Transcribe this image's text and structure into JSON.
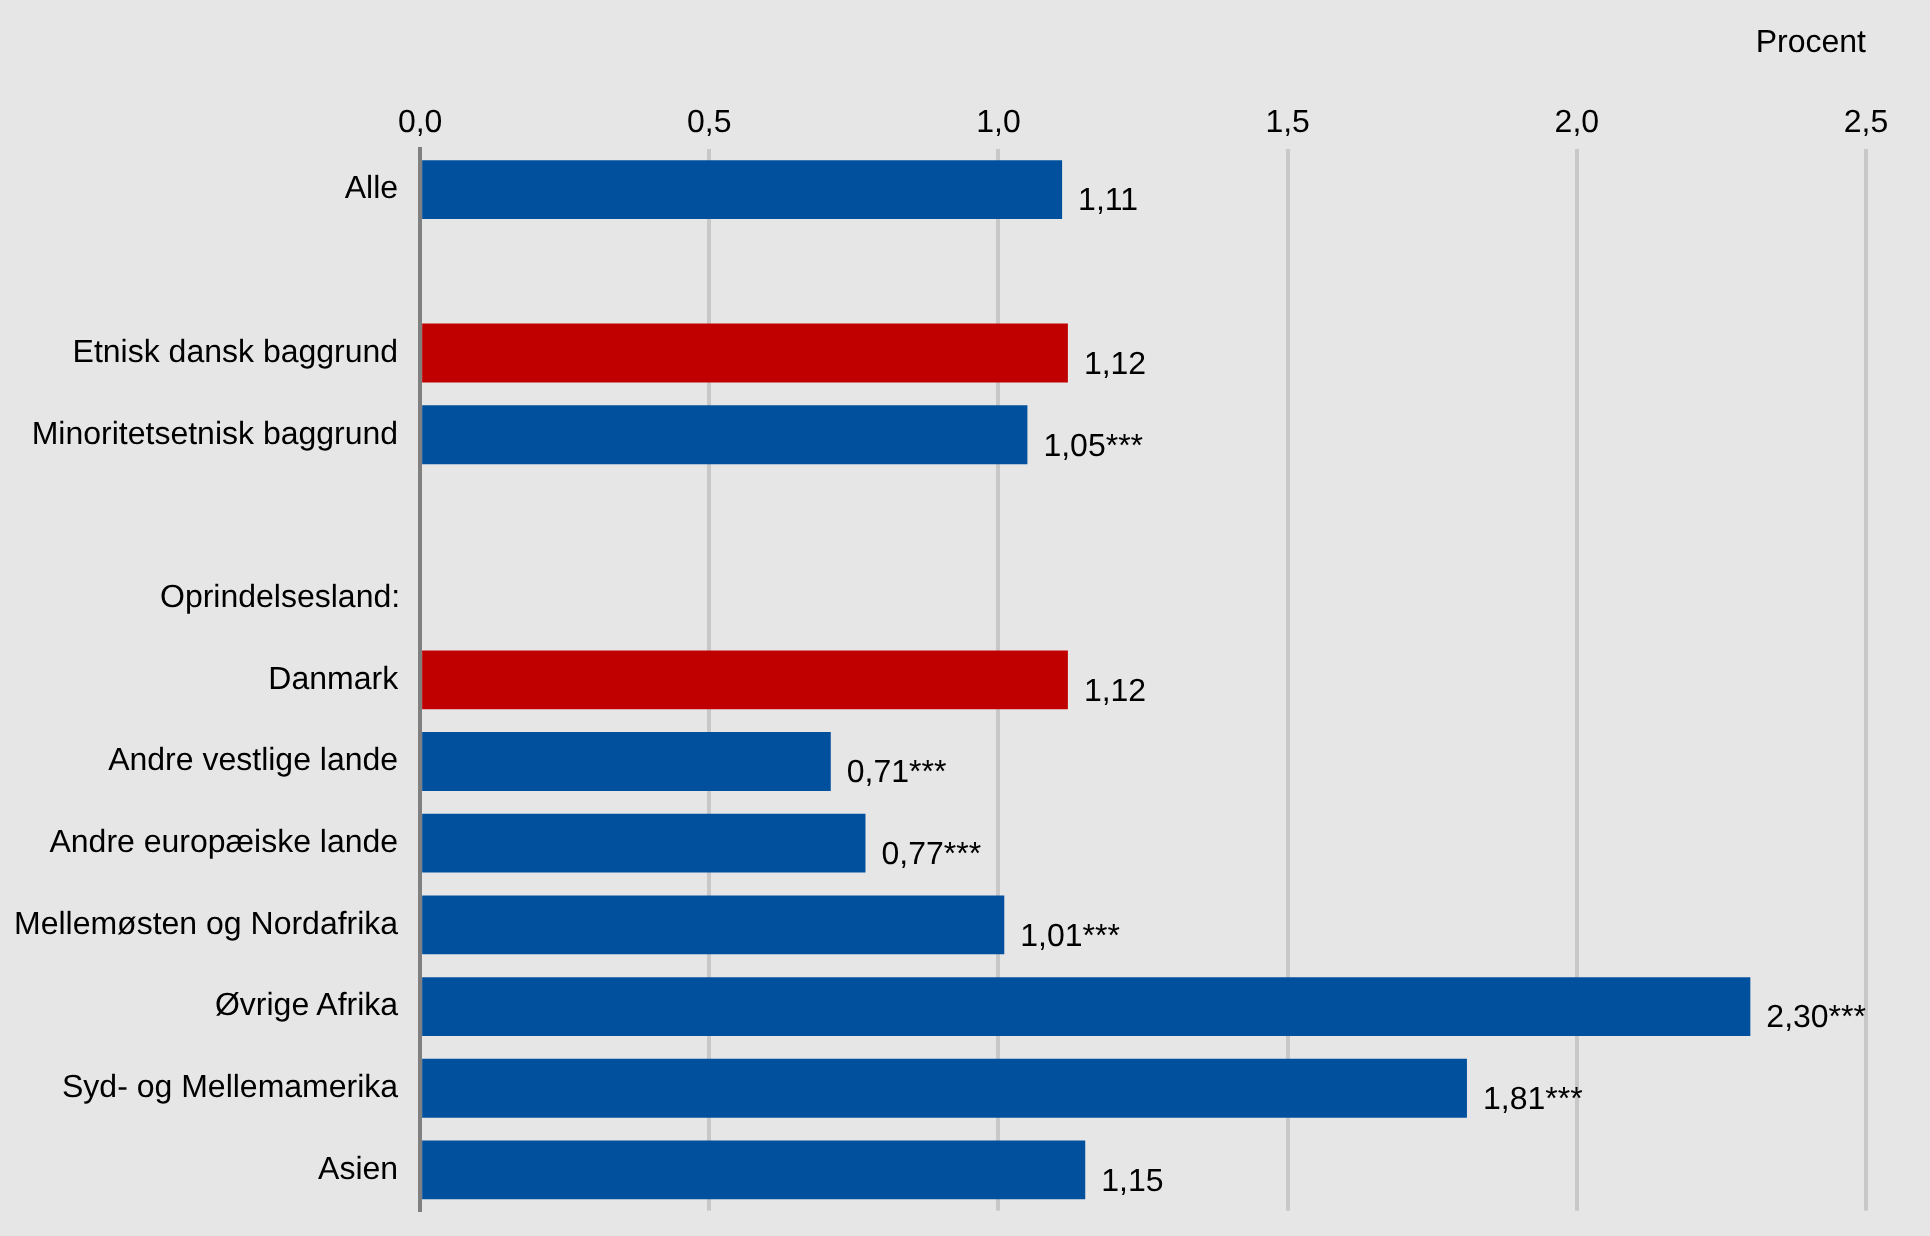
{
  "chart_data": {
    "type": "bar",
    "orientation": "horizontal",
    "xlabel": "Procent",
    "categories": [
      "Alle",
      null,
      "Etnisk dansk baggrund",
      "Minoritetsetnisk baggrund",
      null,
      null,
      "Danmark",
      "Andre vestlige lande",
      "Andre europæiske lande",
      "Mellemøsten og Nordafrika",
      "Øvrige Afrika",
      "Syd- og Mellemamerika",
      "Asien"
    ],
    "values": [
      1.11,
      null,
      1.12,
      1.05,
      null,
      null,
      1.12,
      0.71,
      0.77,
      1.01,
      2.3,
      1.81,
      1.15
    ],
    "colors": [
      "#00509e",
      "#00509e",
      "#c00000",
      "#00509e",
      "#00509e",
      "#00509e",
      "#c00000",
      "#00509e",
      "#00509e",
      "#00509e",
      "#00509e",
      "#00509e",
      "#00509e"
    ],
    "value_labels": [
      "1,11",
      null,
      "1,12",
      "1,05***",
      null,
      null,
      "1,12",
      "0,71***",
      "0,77***",
      "1,01***",
      "2,30***",
      "1,81***",
      "1,15"
    ],
    "xlim": [
      0,
      2.5
    ],
    "xticks": [
      {
        "value": 0,
        "label": "0,0"
      },
      {
        "value": 0.5,
        "label": "0,5"
      },
      {
        "value": 1,
        "label": "1,0"
      },
      {
        "value": 1.5,
        "label": "1,5"
      },
      {
        "value": 2,
        "label": "2,0"
      },
      {
        "value": 2.5,
        "label": "2,5"
      }
    ],
    "grid": "x",
    "legend": false,
    "annotations": [
      "Oprindelsesland:"
    ]
  }
}
